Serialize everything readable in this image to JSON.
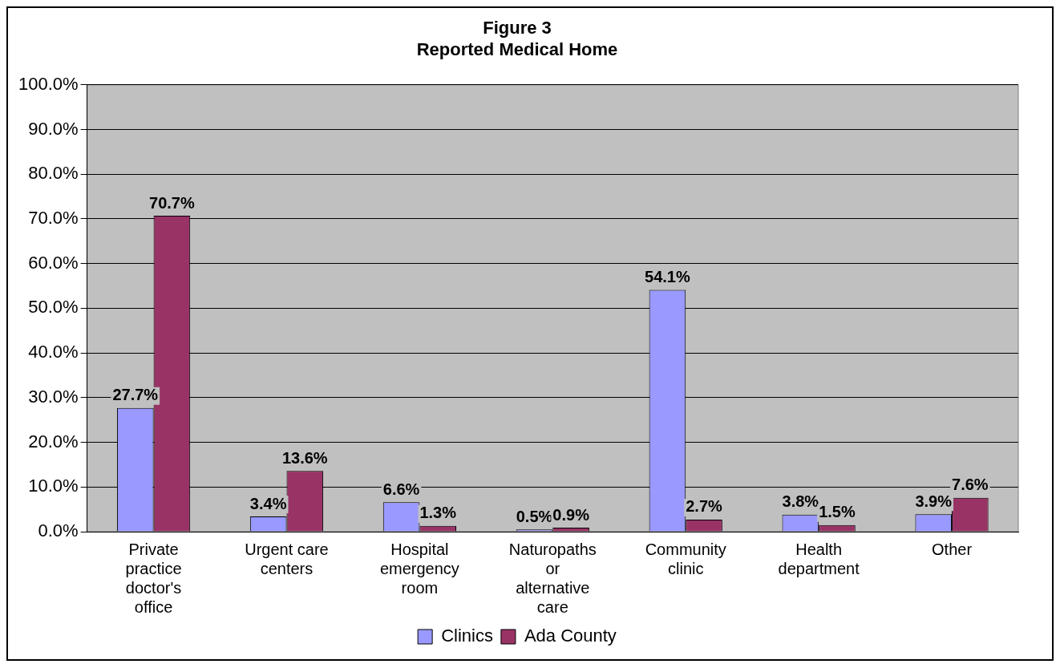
{
  "chart_data": {
    "type": "bar",
    "title": "Figure 3",
    "subtitle": "Reported Medical Home",
    "categories": [
      "Private practice doctor's office",
      "Urgent care centers",
      "Hospital emergency room",
      "Naturopaths or alternative care",
      "Community clinic",
      "Health department",
      "Other"
    ],
    "series": [
      {
        "name": "Clinics",
        "color": "#9999ff",
        "values": [
          27.7,
          3.4,
          6.6,
          0.5,
          54.1,
          3.8,
          3.9
        ],
        "value_labels": [
          "27.7%",
          "3.4%",
          "6.6%",
          "0.5%",
          "54.1%",
          "3.8%",
          "3.9%"
        ]
      },
      {
        "name": "Ada County",
        "color": "#993366",
        "values": [
          70.7,
          13.6,
          1.3,
          0.9,
          2.7,
          1.5,
          7.6
        ],
        "value_labels": [
          "70.7%",
          "13.6%",
          "1.3%",
          "0.9%",
          "2.7%",
          "1.5%",
          "7.6%"
        ]
      }
    ],
    "ylim": [
      0,
      100
    ],
    "yticks": [
      {
        "value": 0,
        "label": "0.0%"
      },
      {
        "value": 10,
        "label": "10.0%"
      },
      {
        "value": 20,
        "label": "20.0%"
      },
      {
        "value": 30,
        "label": "30.0%"
      },
      {
        "value": 40,
        "label": "40.0%"
      },
      {
        "value": 50,
        "label": "50.0%"
      },
      {
        "value": 60,
        "label": "60.0%"
      },
      {
        "value": 70,
        "label": "70.0%"
      },
      {
        "value": 80,
        "label": "80.0%"
      },
      {
        "value": 90,
        "label": "90.0%"
      },
      {
        "value": 100,
        "label": "100.0%"
      }
    ],
    "grid": "y",
    "legend": "bottom"
  }
}
